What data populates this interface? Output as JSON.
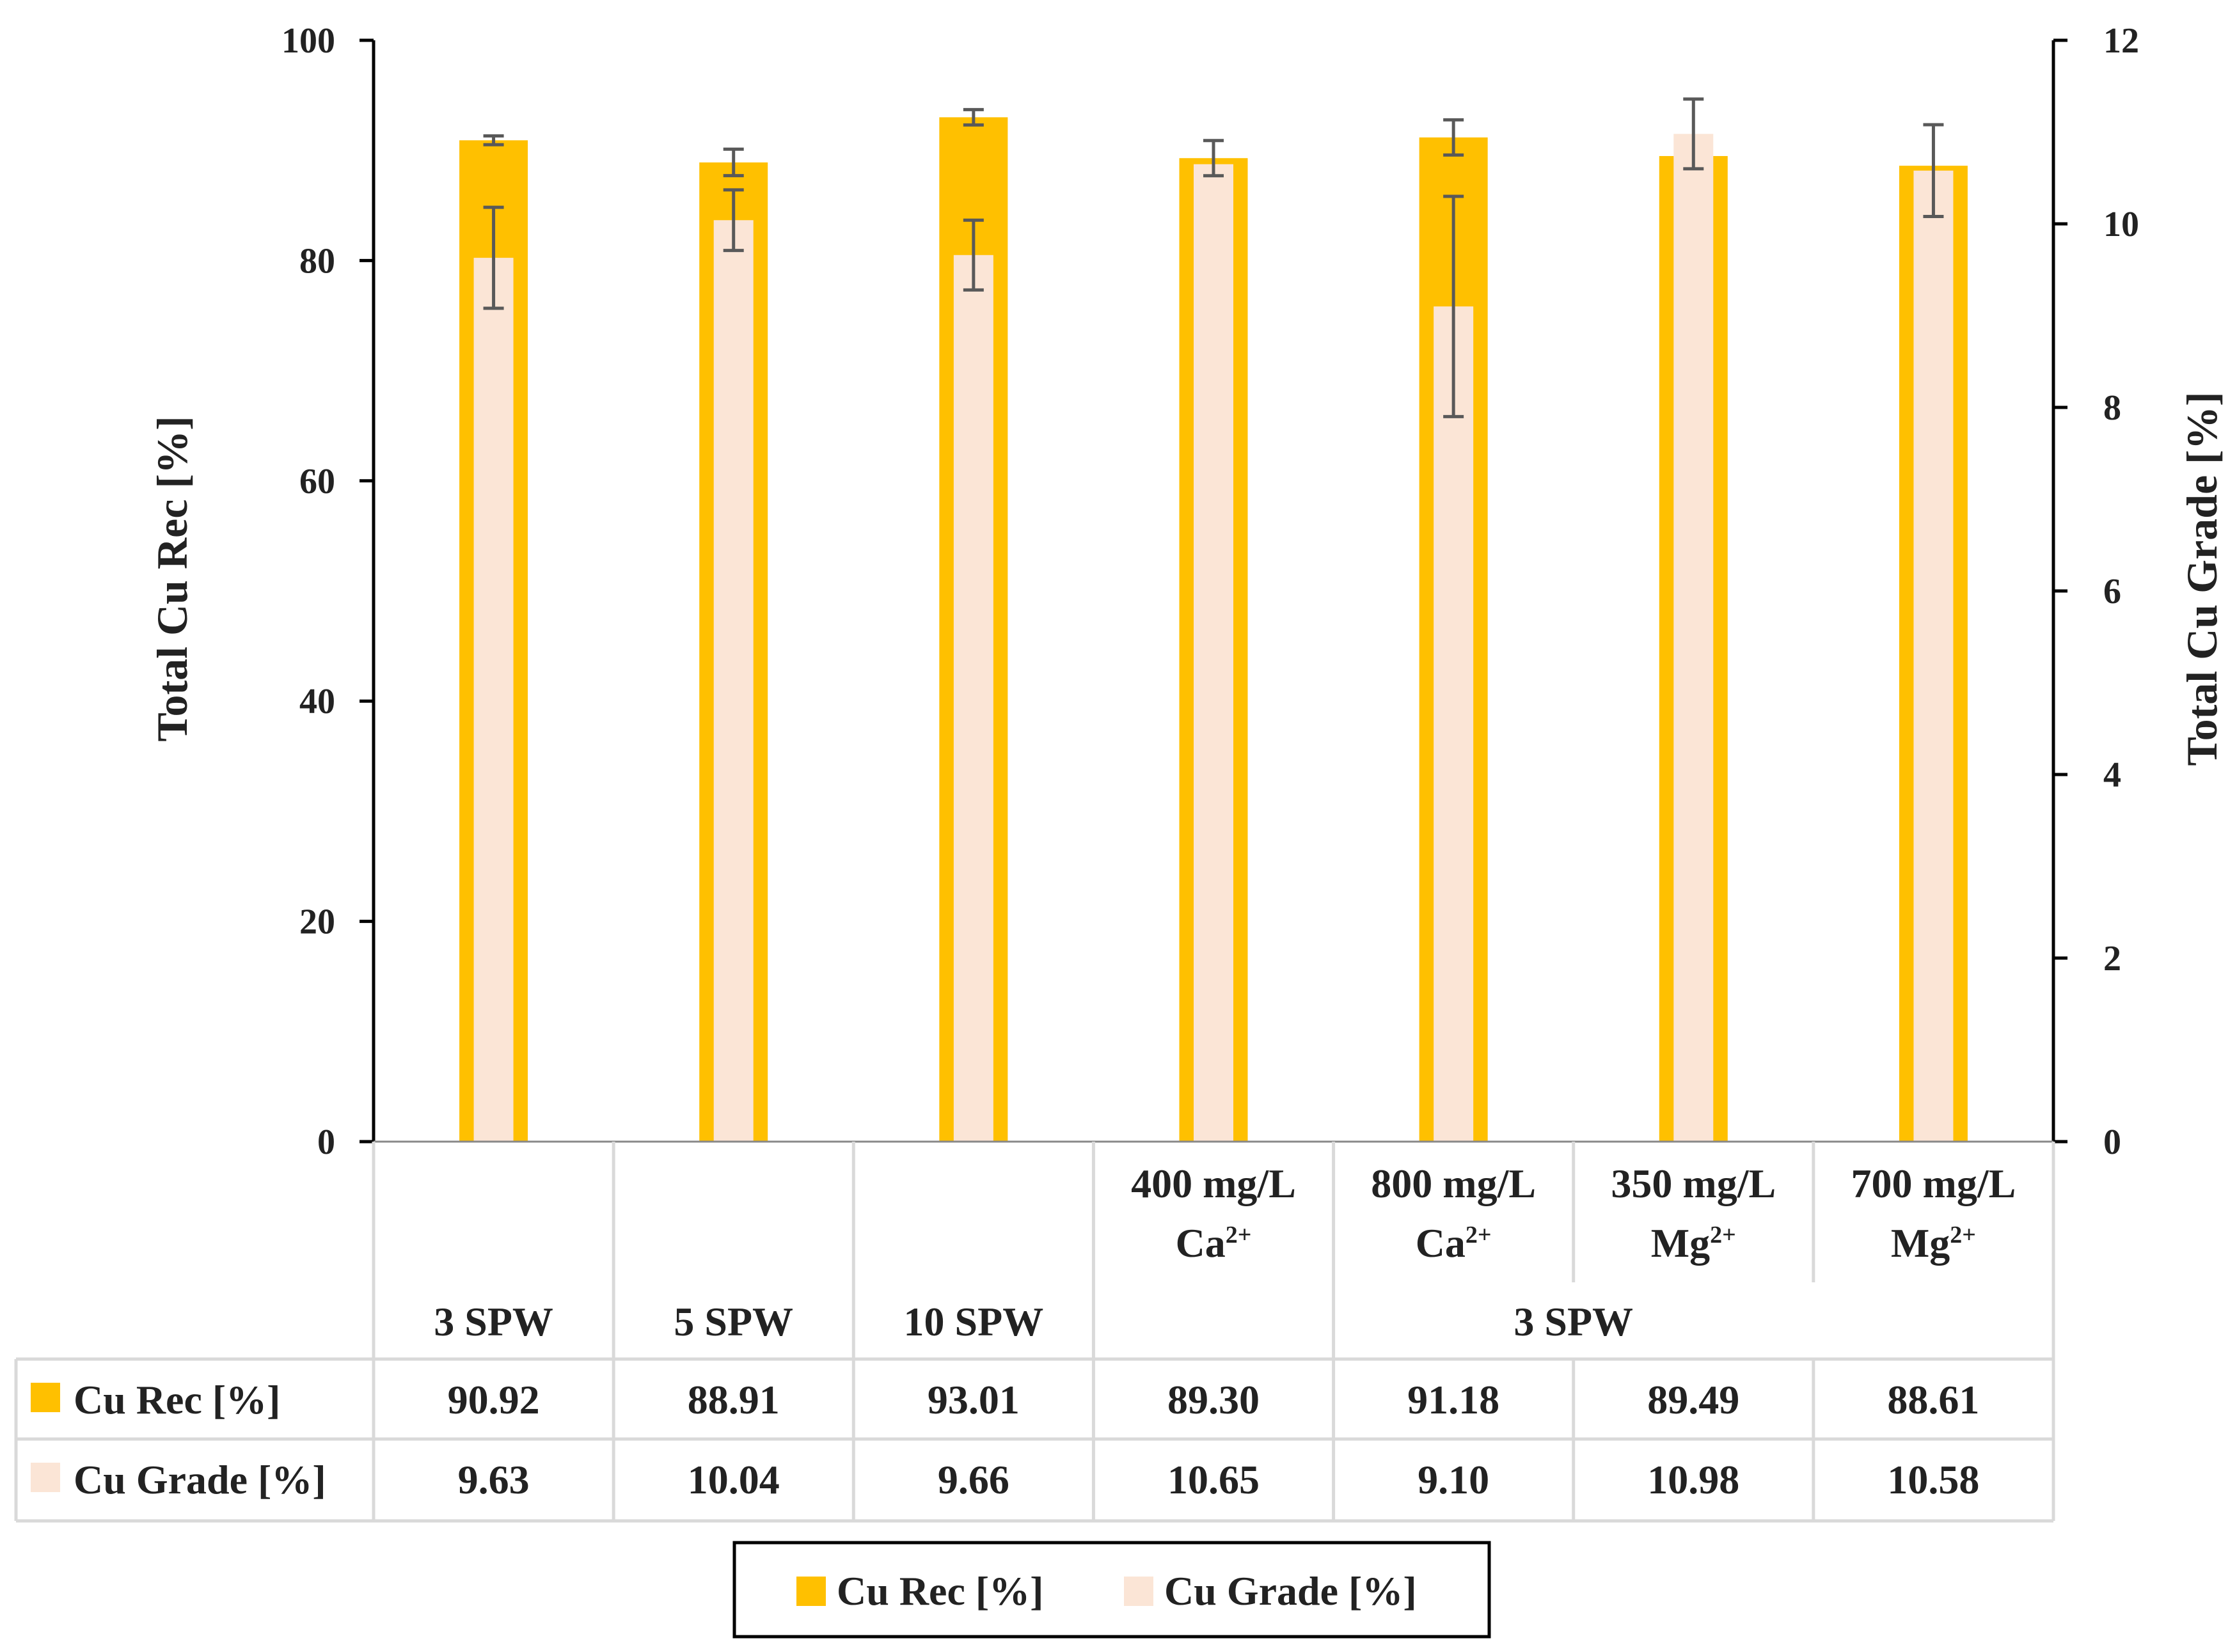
{
  "colors": {
    "rec": "#FFC000",
    "grade": "#FBE5D6",
    "axis": "#000000",
    "err": "#595959",
    "table_line": "#D9D9D9"
  },
  "chart_data": {
    "type": "bar",
    "title": "",
    "ylabel": "Total Cu Rec [%]",
    "y2label": "Total Cu Grade [%]",
    "ylim": [
      0,
      100
    ],
    "y2lim": [
      0,
      12
    ],
    "yticks": [
      "0",
      "20",
      "40",
      "60",
      "80",
      "100"
    ],
    "y2ticks": [
      "0",
      "2",
      "4",
      "6",
      "8",
      "10",
      "12"
    ],
    "categories": [
      {
        "line1": "",
        "line2": "",
        "group": "3 SPW"
      },
      {
        "line1": "",
        "line2": "",
        "group": "5 SPW"
      },
      {
        "line1": "",
        "line2": "",
        "group": "10 SPW"
      },
      {
        "line1": "400 mg/L",
        "line2": "Ca",
        "sup": "2+",
        "group": "3 SPW"
      },
      {
        "line1": "800 mg/L",
        "line2": "Ca",
        "sup": "2+",
        "group": "3 SPW"
      },
      {
        "line1": "350 mg/L",
        "line2": "Mg",
        "sup": "2+",
        "group": "3 SPW"
      },
      {
        "line1": "700 mg/L",
        "line2": "Mg",
        "sup": "2+",
        "group": "3 SPW"
      }
    ],
    "group_labels": [
      "3 SPW",
      "5 SPW",
      "10 SPW",
      "3 SPW"
    ],
    "series": [
      {
        "name": "Cu Rec [%]",
        "axis": "left",
        "values": [
          90.92,
          88.91,
          93.01,
          89.3,
          91.18,
          89.49,
          88.61
        ],
        "value_labels": [
          "90.92",
          "88.91",
          "93.01",
          "89.30",
          "91.18",
          "89.49",
          "88.61"
        ],
        "errors": [
          0.4,
          1.2,
          0.7,
          1.6,
          1.6,
          0.0,
          0.0
        ]
      },
      {
        "name": "Cu Grade [%]",
        "axis": "right",
        "values": [
          9.63,
          10.04,
          9.66,
          10.65,
          9.1,
          10.98,
          10.58
        ],
        "value_labels": [
          "9.63",
          "10.04",
          "9.66",
          "10.65",
          "9.10",
          "10.98",
          "10.58"
        ],
        "errors": [
          0.55,
          0.33,
          0.38,
          0.0,
          1.2,
          0.38,
          0.5
        ]
      }
    ],
    "legend": [
      "Cu Rec [%]",
      "Cu Grade [%]"
    ],
    "legend_position": "bottom"
  }
}
